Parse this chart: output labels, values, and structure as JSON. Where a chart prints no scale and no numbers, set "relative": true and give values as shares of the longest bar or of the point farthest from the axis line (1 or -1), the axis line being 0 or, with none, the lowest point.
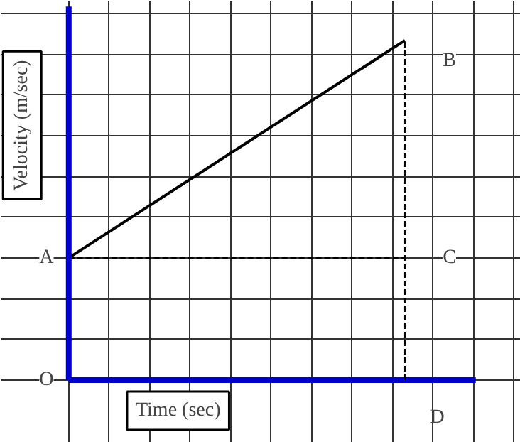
{
  "chart_data": {
    "type": "line",
    "relative": true,
    "xlabel": "Time (sec)",
    "ylabel": "Velocity (m/sec)",
    "categories": [
      null,
      null
    ],
    "tick_labels": false,
    "grid": true,
    "series": [
      {
        "color": "#000000",
        "values": [
          0.36,
          1
        ]
      },
      {
        "color": "#000000",
        "values": [
          0.36,
          0.36
        ],
        "line_style": "dashed"
      }
    ],
    "ref_lines": [
      {
        "axis": "x",
        "label": "D",
        "line_style": "dashed",
        "color": "#000000"
      }
    ],
    "annotations": [
      "A",
      "B",
      "C",
      "O"
    ]
  }
}
